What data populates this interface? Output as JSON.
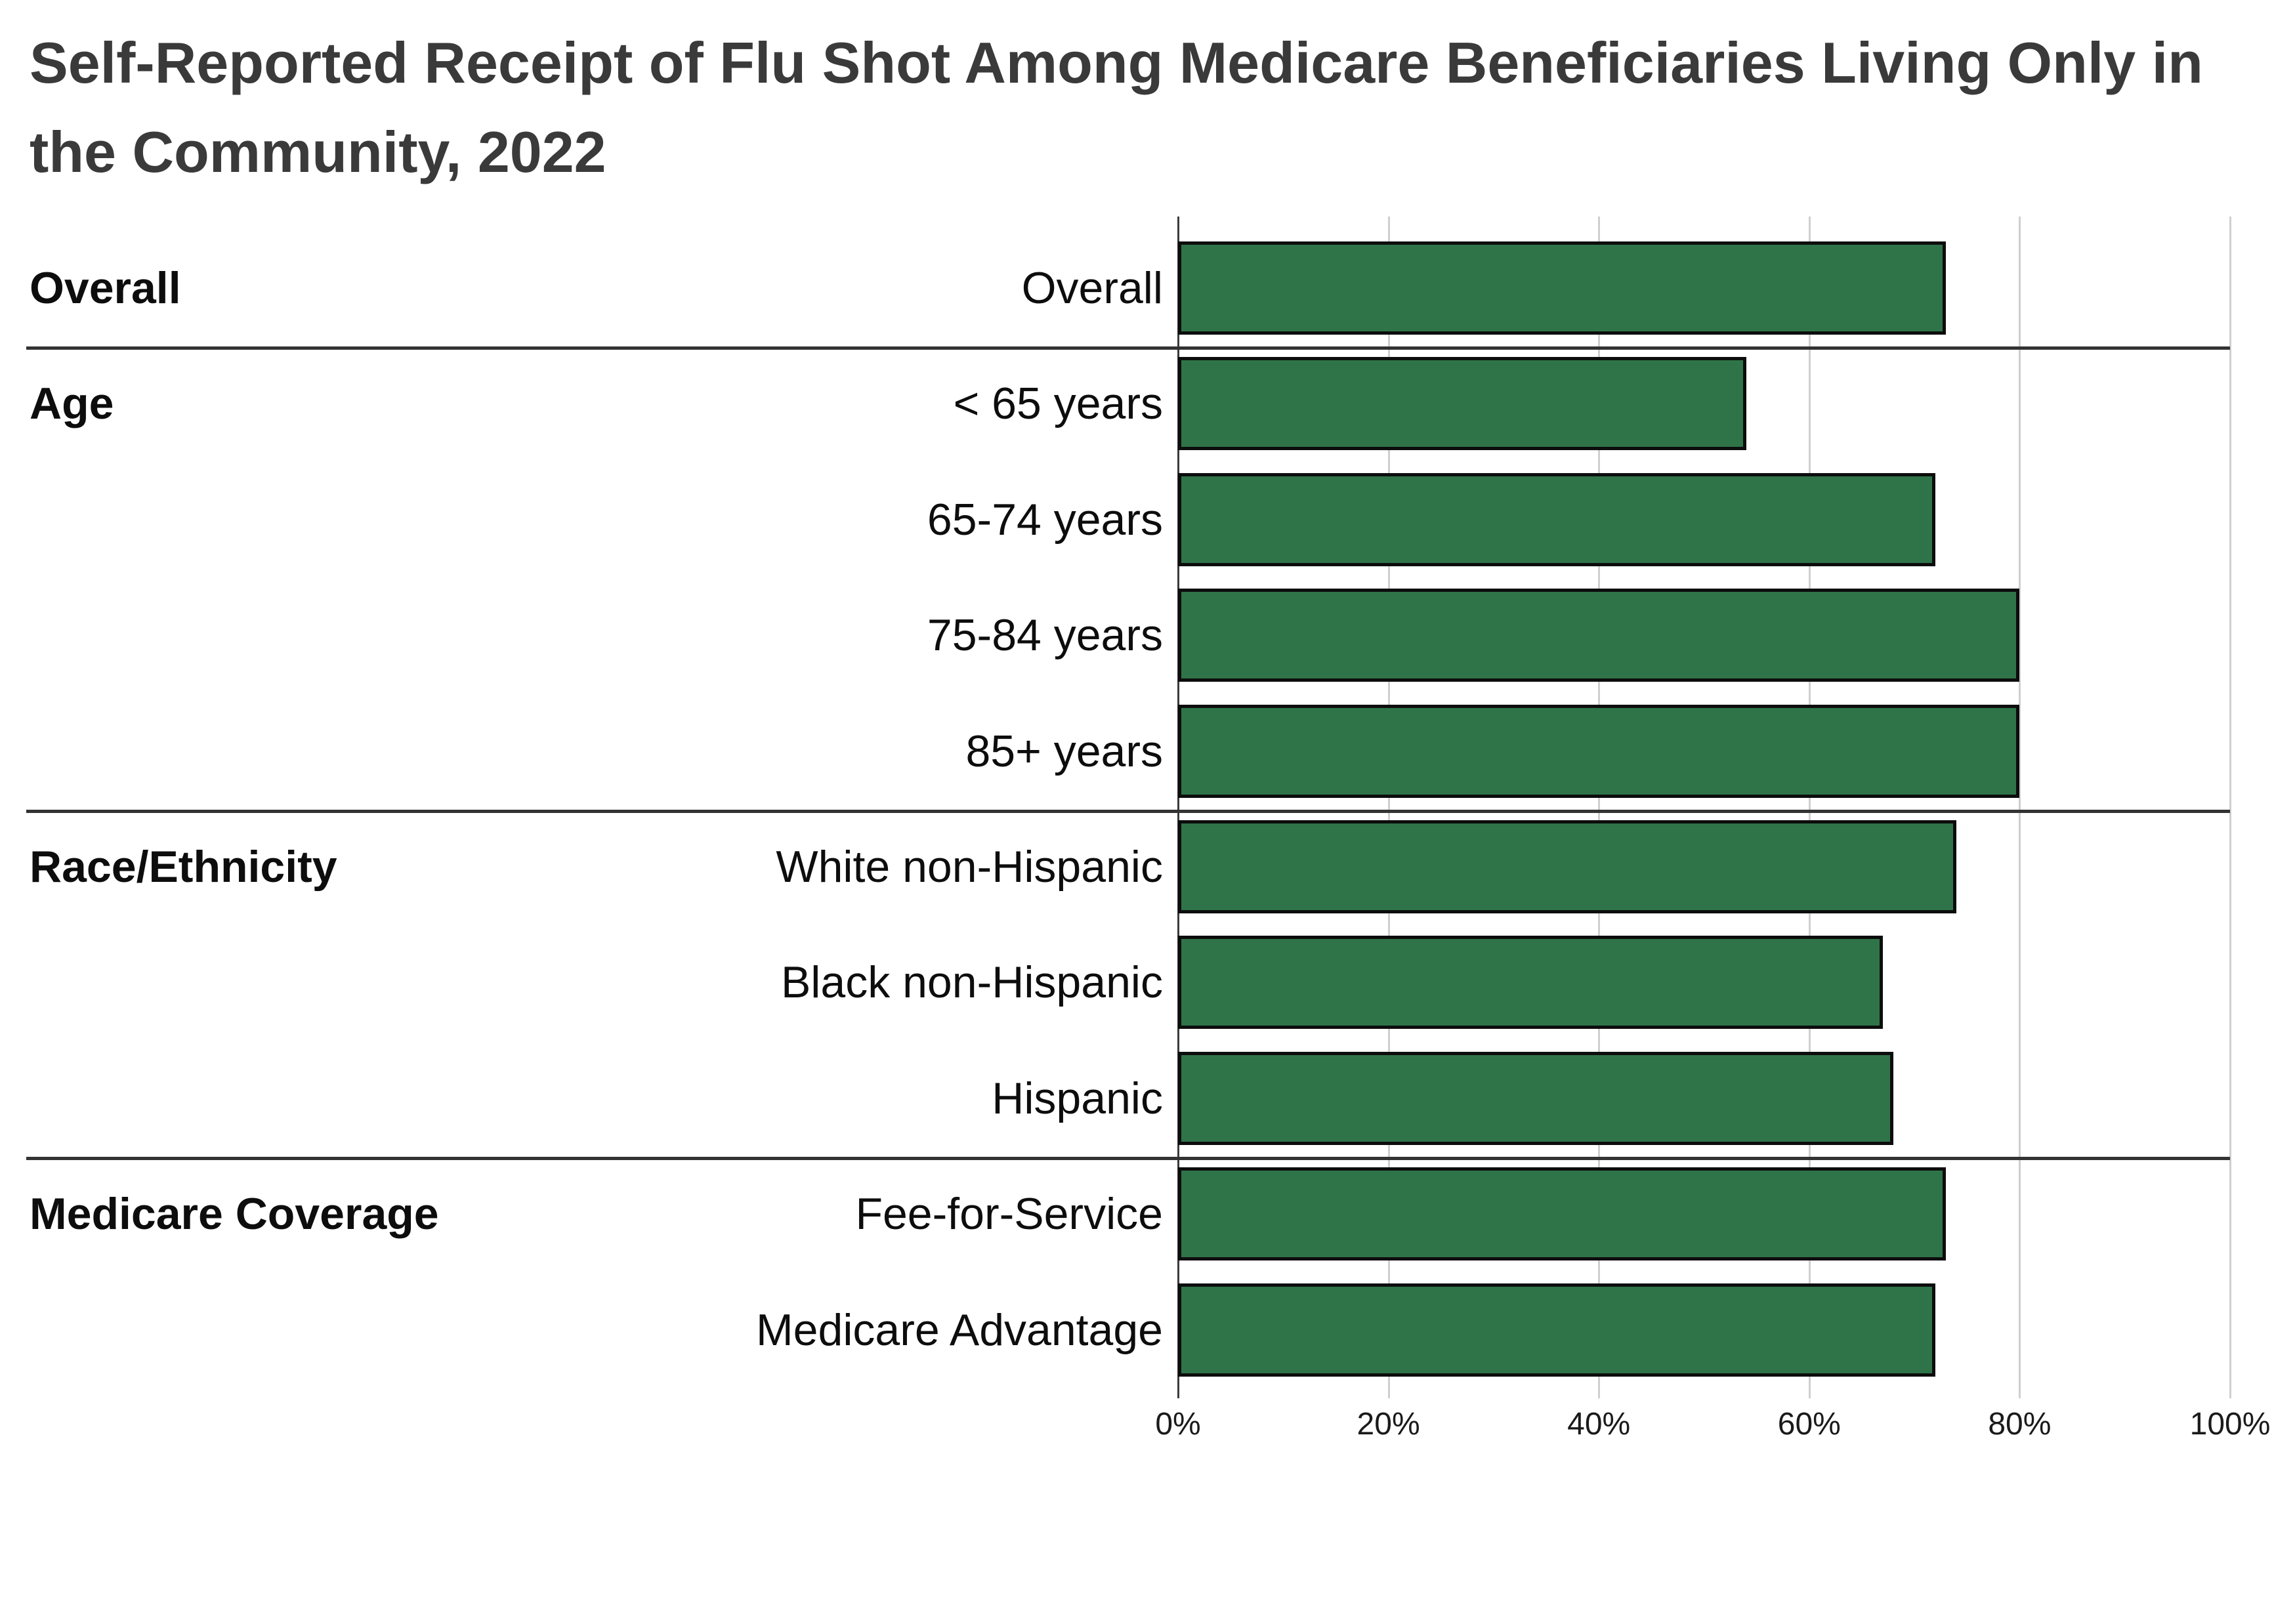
{
  "title": "Self-Reported Receipt of Flu Shot Among Medicare Beneficiaries Living Only in the Community, 2022",
  "chart_data": {
    "type": "bar",
    "orientation": "horizontal",
    "title": "Self-Reported Receipt of Flu Shot Among Medicare Beneficiaries Living Only in the Community, 2022",
    "xlabel": "",
    "ylabel": "",
    "unit": "%",
    "xlim": [
      0,
      100
    ],
    "x_ticks": [
      "0%",
      "20%",
      "40%",
      "60%",
      "80%",
      "100%"
    ],
    "grid": "vertical",
    "legend": "none",
    "bar_color": "#2F7449",
    "bar_border_color": "#0d0d0d",
    "divider_color": "#333333",
    "groups": [
      {
        "label": "Overall",
        "rows": [
          {
            "label": "Overall",
            "value": 73
          }
        ]
      },
      {
        "label": "Age",
        "rows": [
          {
            "label": "< 65 years",
            "value": 54
          },
          {
            "label": "65-74 years",
            "value": 72
          },
          {
            "label": "75-84 years",
            "value": 80
          },
          {
            "label": "85+ years",
            "value": 80
          }
        ]
      },
      {
        "label": "Race/Ethnicity",
        "rows": [
          {
            "label": "White non-Hispanic",
            "value": 74
          },
          {
            "label": "Black non-Hispanic",
            "value": 67
          },
          {
            "label": "Hispanic",
            "value": 68
          }
        ]
      },
      {
        "label": "Medicare Coverage",
        "rows": [
          {
            "label": "Fee-for-Service",
            "value": 73
          },
          {
            "label": "Medicare Advantage",
            "value": 72
          }
        ]
      }
    ]
  }
}
